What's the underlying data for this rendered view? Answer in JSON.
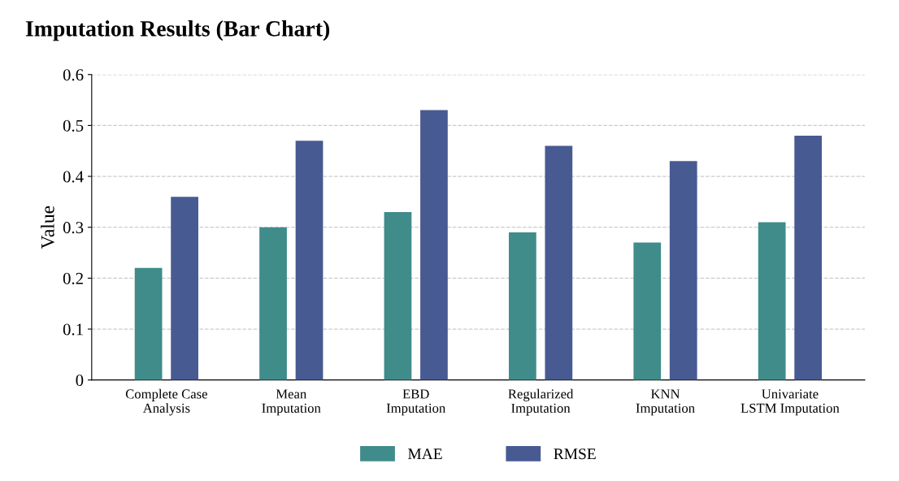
{
  "chart_data": {
    "type": "bar",
    "title": "Imputation Results (Bar Chart)",
    "ylabel": "Value",
    "categories": [
      "Complete Case\nAnalysis",
      "Mean\nImputation",
      "EBD\nImputation",
      "Regularized\nImputation",
      "KNN\nImputation",
      "Univariate\nLSTM Imputation"
    ],
    "series": [
      {
        "name": "MAE",
        "color": "#3f8c8a",
        "values": [
          0.22,
          0.3,
          0.33,
          0.29,
          0.27,
          0.31
        ]
      },
      {
        "name": "RMSE",
        "color": "#485a92",
        "values": [
          0.36,
          0.47,
          0.53,
          0.46,
          0.43,
          0.48
        ]
      }
    ],
    "ylim": [
      0,
      0.6
    ],
    "yticks": [
      0,
      0.1,
      0.2,
      0.3,
      0.4,
      0.5,
      0.6
    ],
    "grid": "y",
    "legend": "bottom"
  }
}
